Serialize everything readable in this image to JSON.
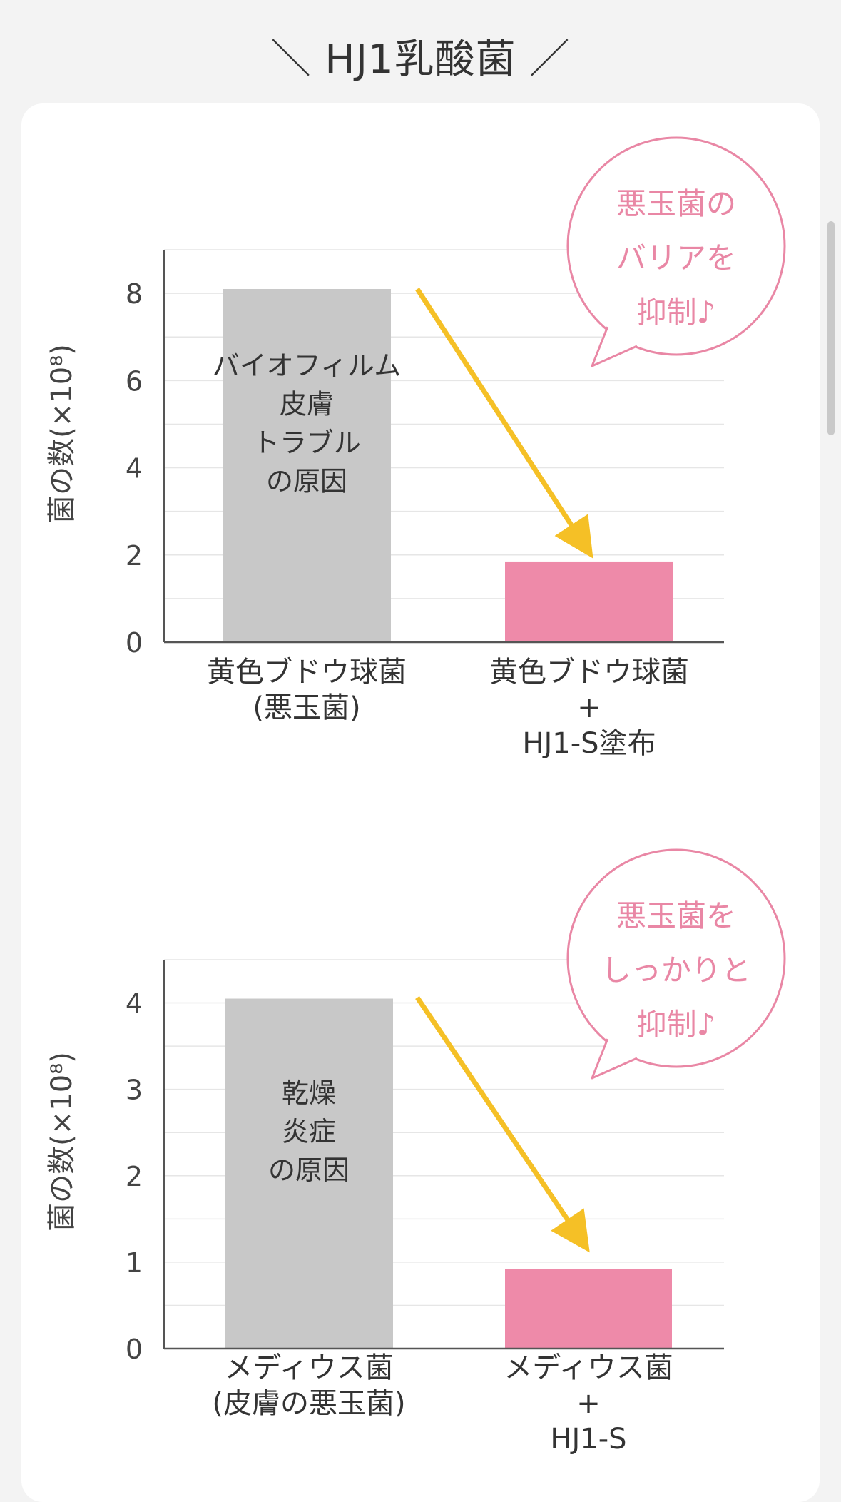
{
  "page_title": "＼ HJ1乳酸菌 ／",
  "colors": {
    "control_bar": "#c8c8c8",
    "treated_bar": "#ee8aa9",
    "arrow": "#f5c026",
    "bubble": "#e987a5",
    "axis": "#555555",
    "grid": "#e6e6e6"
  },
  "chart_data": [
    {
      "type": "bar",
      "ylabel": "菌の数(×10⁸)",
      "ylim": [
        0,
        9
      ],
      "yticks": [
        "0",
        "2",
        "4",
        "6",
        "8"
      ],
      "categories": [
        {
          "lines": [
            "黄色ブドウ球菌",
            "(悪玉菌)"
          ]
        },
        {
          "lines": [
            "黄色ブドウ球菌",
            "+",
            "HJ1-S塗布"
          ]
        }
      ],
      "values": [
        8.1,
        1.85
      ],
      "bar_annotation": [
        "バイオフィルム",
        "皮膚",
        "トラブル",
        "の原因"
      ],
      "bubble_lines": [
        "悪玉菌の",
        "バリアを",
        "抑制♪"
      ]
    },
    {
      "type": "bar",
      "ylabel": "菌の数(×10⁸)",
      "ylim": [
        0,
        4.5
      ],
      "yticks": [
        "0",
        "1",
        "2",
        "3",
        "4"
      ],
      "categories": [
        {
          "lines": [
            "メディウス菌",
            "(皮膚の悪玉菌)"
          ]
        },
        {
          "lines": [
            "メディウス菌",
            "+",
            "HJ1-S"
          ]
        }
      ],
      "values": [
        4.05,
        0.92
      ],
      "bar_annotation": [
        "乾燥",
        "炎症",
        "の原因"
      ],
      "bubble_lines": [
        "悪玉菌を",
        "しっかりと",
        "抑制♪"
      ]
    }
  ]
}
